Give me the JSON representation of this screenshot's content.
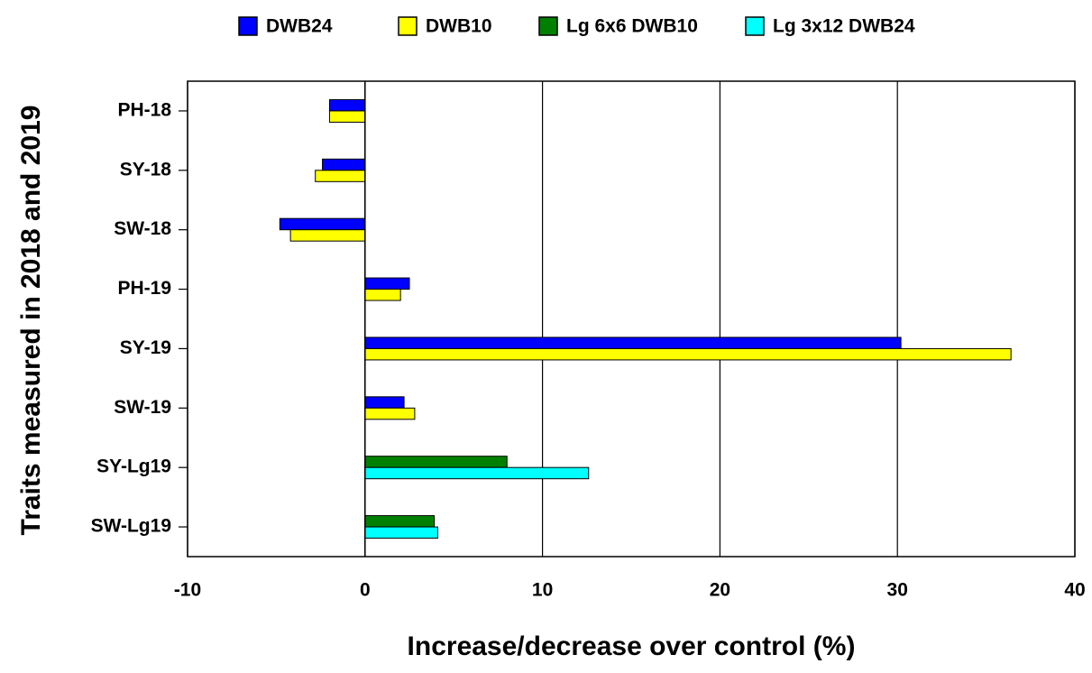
{
  "chart_data": {
    "type": "hbar",
    "x_label": "Increase/decrease over control (%)",
    "y_label": "Traits measured in 2018 and 2019",
    "categories": [
      "PH-18",
      "SY-18",
      "SW-18",
      "PH-19",
      "SY-19",
      "SW-19",
      "SY-Lg19",
      "SW-Lg19"
    ],
    "series": [
      {
        "name": "DWB24",
        "color": "#0000ff",
        "values": [
          -2.0,
          -2.4,
          -4.8,
          2.5,
          30.2,
          2.2,
          null,
          null
        ]
      },
      {
        "name": "DWB10",
        "color": "#ffff00",
        "values": [
          -2.0,
          -2.8,
          -4.2,
          2.0,
          36.4,
          2.8,
          null,
          null
        ]
      },
      {
        "name": "Lg 6x6 DWB10",
        "color": "#008000",
        "values": [
          null,
          null,
          null,
          null,
          null,
          null,
          8.0,
          3.9
        ]
      },
      {
        "name": "Lg 3x12 DWB24",
        "color": "#00ffff",
        "values": [
          null,
          null,
          null,
          null,
          null,
          null,
          12.6,
          4.1
        ]
      }
    ],
    "xlim": [
      -10,
      40
    ],
    "xticks": [
      -10,
      0,
      10,
      20,
      30,
      40
    ],
    "grid": true,
    "legend": "top"
  }
}
